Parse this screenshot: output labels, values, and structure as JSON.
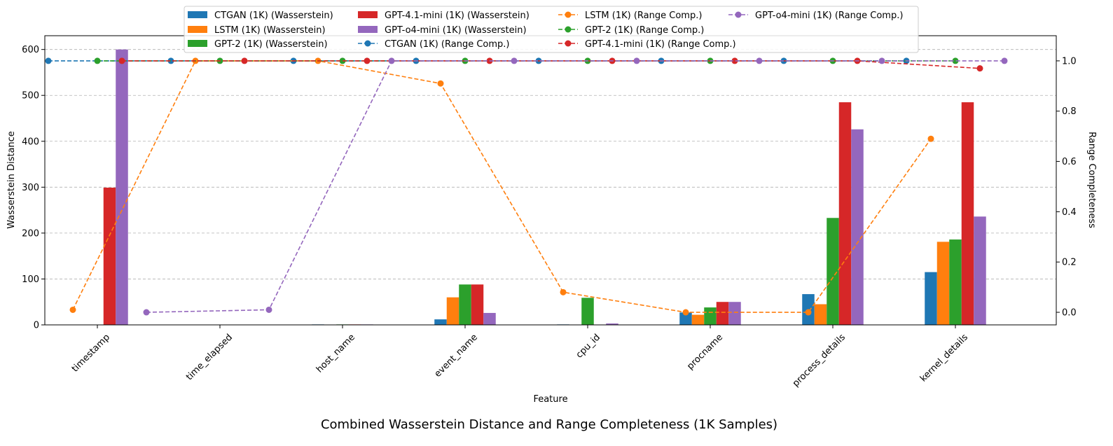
{
  "chart_data": {
    "type": "bar+line",
    "title": "Combined Wasserstein Distance and Range Completeness (1K Samples)",
    "xlabel": "Feature",
    "ylabel": "Wasserstein Distance",
    "ylabel_right": "Range Completeness",
    "categories": [
      "timestamp",
      "time_elapsed",
      "host_name",
      "event_name",
      "cpu_id",
      "procname",
      "process_details",
      "kernel_details"
    ],
    "ylim": [
      0,
      630
    ],
    "yticks": [
      0,
      100,
      200,
      300,
      400,
      500,
      600
    ],
    "ylim_right": [
      -0.05,
      1.1
    ],
    "yticks_right": [
      0.0,
      0.2,
      0.4,
      0.6,
      0.8,
      1.0
    ],
    "grid": "horizontal dashed",
    "legend_position": "top",
    "bar_series": [
      {
        "name": "CTGAN (1K) (Wasserstein)",
        "color": "#1f77b4",
        "values": [
          0,
          0,
          1,
          12,
          1,
          27,
          67,
          115
        ]
      },
      {
        "name": "LSTM (1K) (Wasserstein)",
        "color": "#ff7f0e",
        "values": [
          0,
          0,
          0.5,
          60,
          0,
          22,
          45,
          181
        ]
      },
      {
        "name": "GPT-2 (1K) (Wasserstein)",
        "color": "#2ca02c",
        "values": [
          0,
          0,
          1,
          88,
          59,
          38,
          233,
          186
        ]
      },
      {
        "name": "GPT-4.1-mini (1K) (Wasserstein)",
        "color": "#d62728",
        "values": [
          299,
          0,
          1,
          88,
          0,
          50,
          485,
          485
        ]
      },
      {
        "name": "GPT-o4-mini (1K) (Wasserstein)",
        "color": "#9467bd",
        "values": [
          600,
          0,
          1,
          26,
          3,
          50,
          426,
          236
        ]
      }
    ],
    "line_series": [
      {
        "name": "CTGAN (1K) (Range Comp.)",
        "color": "#1f77b4",
        "values": [
          1.0,
          1.0,
          1.0,
          1.0,
          1.0,
          1.0,
          1.0,
          1.0
        ]
      },
      {
        "name": "LSTM (1K) (Range Comp.)",
        "color": "#ff7f0e",
        "values": [
          0.01,
          1.0,
          1.0,
          0.91,
          0.08,
          0.0,
          0.0,
          0.69
        ]
      },
      {
        "name": "GPT-2 (1K) (Range Comp.)",
        "color": "#2ca02c",
        "values": [
          1.0,
          1.0,
          1.0,
          1.0,
          1.0,
          1.0,
          1.0,
          1.0
        ]
      },
      {
        "name": "GPT-4.1-mini (1K) (Range Comp.)",
        "color": "#d62728",
        "values": [
          1.0,
          1.0,
          1.0,
          1.0,
          1.0,
          1.0,
          1.0,
          0.97
        ]
      },
      {
        "name": "GPT-o4-mini (1K) (Range Comp.)",
        "color": "#9467bd",
        "values": [
          0.0,
          0.01,
          1.0,
          1.0,
          1.0,
          1.0,
          1.0,
          1.0
        ]
      }
    ]
  }
}
